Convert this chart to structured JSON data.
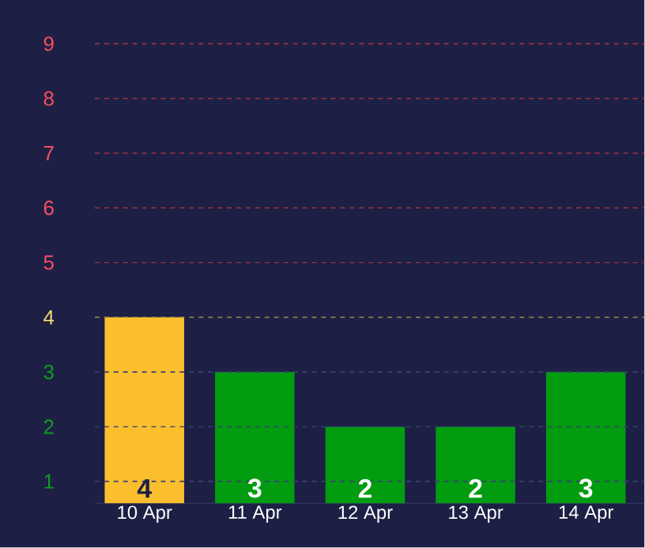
{
  "chart_data": {
    "type": "bar",
    "categories": [
      "10 Apr",
      "11 Apr",
      "12 Apr",
      "13 Apr",
      "14 Apr"
    ],
    "values": [
      4,
      3,
      2,
      2,
      3
    ],
    "data_labels": true,
    "colors": [
      "#fbbf2e",
      "#029c10",
      "#029c10",
      "#029c10",
      "#029c10"
    ],
    "ylim": [
      0.6,
      9.8
    ],
    "yticks": [
      1,
      2,
      3,
      4,
      5,
      6,
      7,
      8,
      9
    ],
    "ref_lines": [
      {
        "axis": "y",
        "value": 1,
        "color": "#3a4070",
        "line_style": "dashed"
      },
      {
        "axis": "y",
        "value": 2,
        "color": "#3a4070",
        "line_style": "dashed"
      },
      {
        "axis": "y",
        "value": 3,
        "color": "#3a4070",
        "line_style": "dashed"
      },
      {
        "axis": "y",
        "value": 4,
        "color": "#9a8a48",
        "line_style": "dashed"
      },
      {
        "axis": "y",
        "value": 5,
        "color": "#a0303f",
        "line_style": "dashed"
      },
      {
        "axis": "y",
        "value": 6,
        "color": "#a0303f",
        "line_style": "dashed"
      },
      {
        "axis": "y",
        "value": 7,
        "color": "#a0303f",
        "line_style": "dashed"
      },
      {
        "axis": "y",
        "value": 8,
        "color": "#a0303f",
        "line_style": "dashed"
      },
      {
        "axis": "y",
        "value": 9,
        "color": "#a0303f",
        "line_style": "dashed"
      }
    ]
  }
}
